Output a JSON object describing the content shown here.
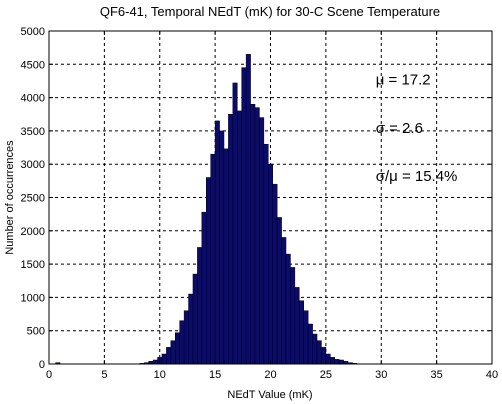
{
  "chart_data": {
    "type": "bar",
    "title": "QF6-41, Temporal NEdT (mK) for 30-C Scene Temperature",
    "xlabel": "NEdT Value (mK)",
    "ylabel": "Number of occurrences",
    "xlim": [
      0,
      40
    ],
    "ylim": [
      0,
      5000
    ],
    "xticks": [
      0,
      5,
      10,
      15,
      20,
      25,
      30,
      35,
      40
    ],
    "yticks": [
      0,
      500,
      1000,
      1500,
      2000,
      2500,
      3000,
      3500,
      4000,
      4500,
      5000
    ],
    "grid": true,
    "bar_color": "#0b0b6e",
    "bin_width": 0.4,
    "x": [
      0.8,
      8.4,
      8.8,
      9.2,
      9.6,
      10.0,
      10.4,
      10.8,
      11.2,
      11.6,
      12.0,
      12.4,
      12.8,
      13.2,
      13.6,
      14.0,
      14.4,
      14.8,
      15.2,
      15.6,
      16.0,
      16.4,
      16.8,
      17.2,
      17.6,
      18.0,
      18.4,
      18.8,
      19.2,
      19.6,
      20.0,
      20.4,
      20.8,
      21.2,
      21.6,
      22.0,
      22.4,
      22.8,
      23.2,
      23.6,
      24.0,
      24.4,
      24.8,
      25.2,
      25.6,
      26.0,
      26.4,
      26.8,
      27.2,
      27.6
    ],
    "values": [
      20,
      10,
      20,
      40,
      60,
      100,
      150,
      250,
      350,
      470,
      650,
      800,
      1050,
      1350,
      1750,
      2280,
      2800,
      3150,
      3650,
      3500,
      3230,
      3750,
      4220,
      3800,
      4450,
      4650,
      3900,
      3850,
      3700,
      3300,
      3000,
      2700,
      2200,
      1900,
      1650,
      1450,
      1150,
      950,
      800,
      600,
      450,
      350,
      250,
      150,
      100,
      70,
      60,
      40,
      20,
      10
    ],
    "annotations": [
      {
        "text": "μ = 17.2",
        "x": 29.5,
        "y": 4200
      },
      {
        "text": "σ = 2.6",
        "x": 29.5,
        "y": 3470
      },
      {
        "text": "σ/μ = 15.4%",
        "x": 29.5,
        "y": 2750
      }
    ]
  }
}
